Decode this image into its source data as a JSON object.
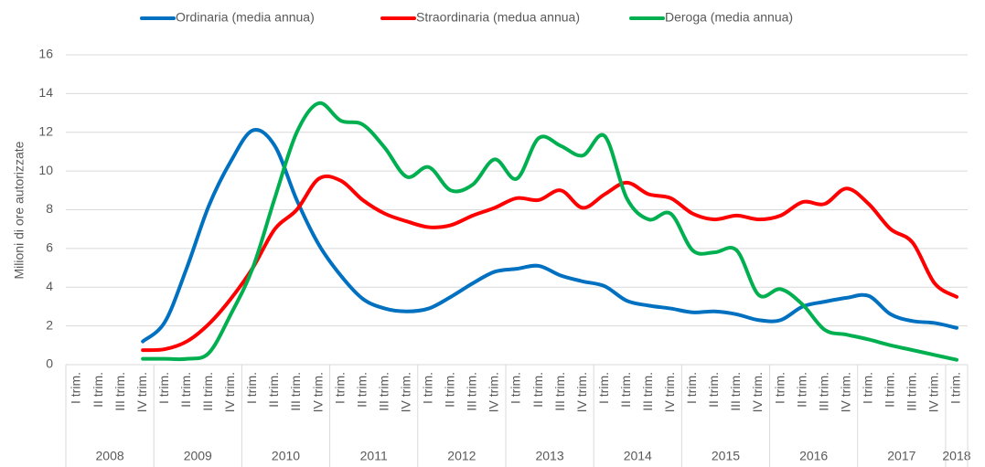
{
  "chart_data": {
    "type": "line",
    "y_label": "Milioni di ore autorizzate",
    "years": [
      {
        "year": "2008",
        "quarters": [
          "I trim.",
          "II trim.",
          "III trim.",
          "IV trim."
        ]
      },
      {
        "year": "2009",
        "quarters": [
          "I trim.",
          "II trim.",
          "III trim.",
          "IV trim."
        ]
      },
      {
        "year": "2010",
        "quarters": [
          "I trim.",
          "II trim.",
          "III trim.",
          "IV trim."
        ]
      },
      {
        "year": "2011",
        "quarters": [
          "I trim.",
          "II trim.",
          "III trim.",
          "IV trim."
        ]
      },
      {
        "year": "2012",
        "quarters": [
          "I trim.",
          "II trim.",
          "III trim.",
          "IV trim."
        ]
      },
      {
        "year": "2013",
        "quarters": [
          "I trim.",
          "II trim.",
          "III trim.",
          "IV trim."
        ]
      },
      {
        "year": "2014",
        "quarters": [
          "I trim.",
          "II trim.",
          "III trim.",
          "IV trim."
        ]
      },
      {
        "year": "2015",
        "quarters": [
          "I trim.",
          "II trim.",
          "III trim.",
          "IV trim."
        ]
      },
      {
        "year": "2016",
        "quarters": [
          "I trim.",
          "II trim.",
          "III trim.",
          "IV trim."
        ]
      },
      {
        "year": "2017",
        "quarters": [
          "I trim.",
          "II trim.",
          "III trim.",
          "IV trim."
        ]
      },
      {
        "year": "2018",
        "quarters": [
          "I trim."
        ]
      }
    ],
    "series": [
      {
        "name": "Ordinaria (media annua)",
        "color": "#0070c0",
        "values": [
          null,
          null,
          null,
          1.2,
          2.2,
          5.0,
          8.2,
          10.5,
          12.1,
          11.3,
          8.5,
          6.2,
          4.6,
          3.4,
          2.9,
          2.75,
          2.9,
          3.5,
          4.2,
          4.8,
          4.95,
          5.1,
          4.6,
          4.3,
          4.05,
          3.3,
          3.05,
          2.9,
          2.7,
          2.75,
          2.6,
          2.3,
          2.3,
          3.0,
          3.25,
          3.45,
          3.55,
          2.6,
          2.25,
          2.15,
          1.9
        ]
      },
      {
        "name": "Straordinaria (medua annua)",
        "color": "#ff0000",
        "values": [
          null,
          null,
          null,
          0.75,
          0.8,
          1.2,
          2.1,
          3.4,
          5.0,
          7.0,
          8.0,
          9.6,
          9.5,
          8.5,
          7.8,
          7.4,
          7.1,
          7.2,
          7.7,
          8.1,
          8.6,
          8.5,
          9.0,
          8.1,
          8.8,
          9.4,
          8.8,
          8.6,
          7.8,
          7.5,
          7.7,
          7.5,
          7.7,
          8.4,
          8.3,
          9.1,
          8.3,
          7.0,
          6.3,
          4.2,
          3.5
        ]
      },
      {
        "name": "Deroga (media annua)",
        "color": "#00b050",
        "values": [
          null,
          null,
          null,
          0.3,
          0.3,
          0.3,
          0.6,
          2.6,
          5.0,
          8.6,
          12.0,
          13.5,
          12.6,
          12.4,
          11.2,
          9.7,
          10.2,
          9.0,
          9.3,
          10.6,
          9.6,
          11.7,
          11.3,
          10.8,
          11.8,
          8.6,
          7.5,
          7.8,
          5.9,
          5.8,
          5.9,
          3.6,
          3.9,
          3.1,
          1.8,
          1.55,
          1.3,
          1.0,
          0.75,
          0.5,
          0.25
        ]
      }
    ],
    "ylim": [
      0,
      16
    ],
    "yticks": [
      0,
      2,
      4,
      6,
      8,
      10,
      12,
      14,
      16
    ],
    "grid": true,
    "legend": "top"
  }
}
